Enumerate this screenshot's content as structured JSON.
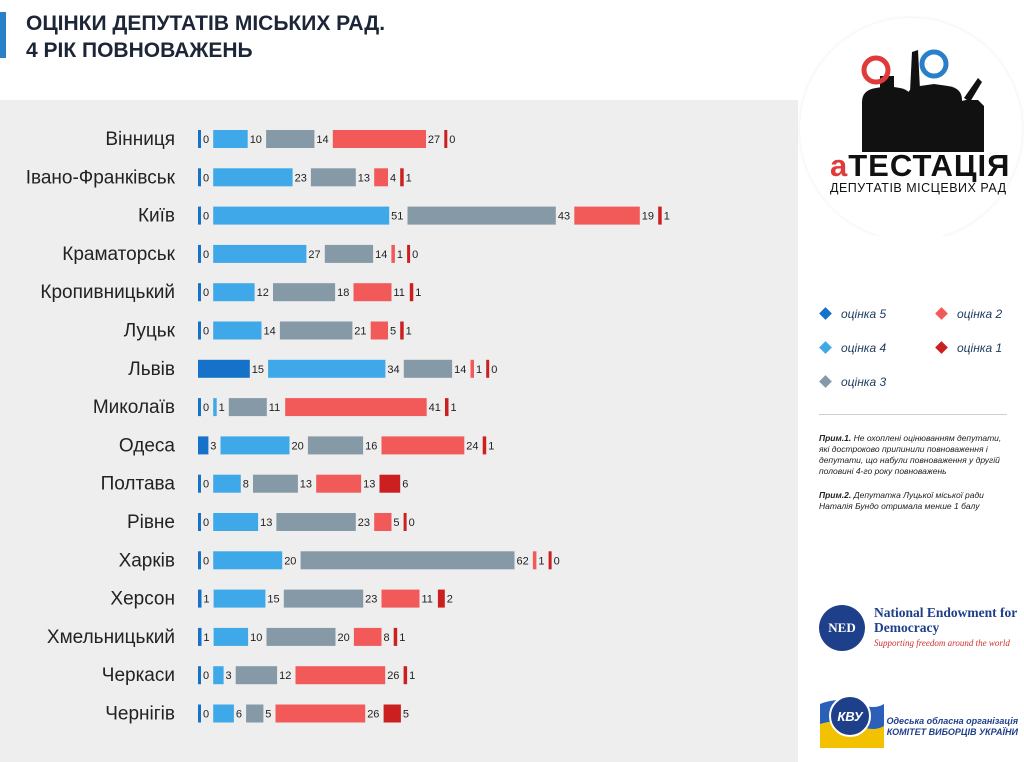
{
  "header": {
    "title_line1": "ОЦІНКИ ДЕПУТАТІВ МІСЬКИХ РАД.",
    "title_line2": "4 РІК ПОВНОВАЖЕНЬ"
  },
  "logo": {
    "title_a": "а",
    "title_rest": "ТЕСТАЦІЯ",
    "subtitle": "ДЕПУТАТІВ МІСЦЕВИХ РАД"
  },
  "legend": [
    {
      "label": "оцінка 5",
      "color": "#1672c9"
    },
    {
      "label": "оцінка 2",
      "color": "#f25a5a"
    },
    {
      "label": "оцінка 4",
      "color": "#3fa8e8"
    },
    {
      "label": "оцінка 1",
      "color": "#cc2020"
    },
    {
      "label": "оцінка 3",
      "color": "#8599a6"
    }
  ],
  "notes": {
    "note1_label": "Прим.1.",
    "note1_text": "Не охоплені оцінюванням депутати, які достроково припинили повноваження і депутати, що набули повноваження у другій половині 4-го року повноважень",
    "note2_label": "Прим.2.",
    "note2_text": "Депутатка Луцької міської ради Наталія Бундо отримала менше 1 балу"
  },
  "sponsors": {
    "ned_initials": "NED",
    "ned_name": "National Endowment for Democracy",
    "ned_tagline": "Supporting freedom around the world",
    "cvu_badge": "КВУ",
    "cvu_line1": "Одеська обласна організація",
    "cvu_line2": "КОМІТЕТ ВИБОРЦІВ УКРАЇНИ"
  },
  "chart_data": {
    "type": "bar",
    "orientation": "horizontal",
    "stacked": true,
    "title": "ОЦІНКИ ДЕПУТАТІВ МІСЬКИХ РАД. 4 РІК ПОВНОВАЖЕНЬ",
    "categories": [
      "Вінниця",
      "Івано-Франківськ",
      "Київ",
      "Краматорськ",
      "Кропивницький",
      "Луцьк",
      "Львів",
      "Миколаїв",
      "Одеса",
      "Полтава",
      "Рівне",
      "Харків",
      "Херсон",
      "Хмельницький",
      "Черкаси",
      "Чернігів"
    ],
    "series": [
      {
        "name": "оцінка 5",
        "color": "#1672c9",
        "values": [
          0,
          0,
          0,
          0,
          0,
          0,
          15,
          0,
          3,
          0,
          0,
          0,
          1,
          1,
          0,
          0
        ]
      },
      {
        "name": "оцінка 4",
        "color": "#3fa8e8",
        "values": [
          10,
          23,
          51,
          27,
          12,
          14,
          34,
          1,
          20,
          8,
          13,
          20,
          15,
          10,
          3,
          6
        ]
      },
      {
        "name": "оцінка 3",
        "color": "#8599a6",
        "values": [
          14,
          13,
          43,
          14,
          18,
          21,
          14,
          11,
          16,
          13,
          23,
          62,
          23,
          20,
          12,
          5
        ]
      },
      {
        "name": "оцінка 2",
        "color": "#f25a5a",
        "values": [
          27,
          4,
          19,
          1,
          11,
          5,
          1,
          41,
          24,
          13,
          5,
          1,
          11,
          8,
          26,
          26
        ]
      },
      {
        "name": "оцінка 1",
        "color": "#cc2020",
        "values": [
          0,
          1,
          1,
          0,
          1,
          1,
          0,
          1,
          1,
          6,
          0,
          0,
          2,
          1,
          1,
          5
        ]
      }
    ]
  }
}
